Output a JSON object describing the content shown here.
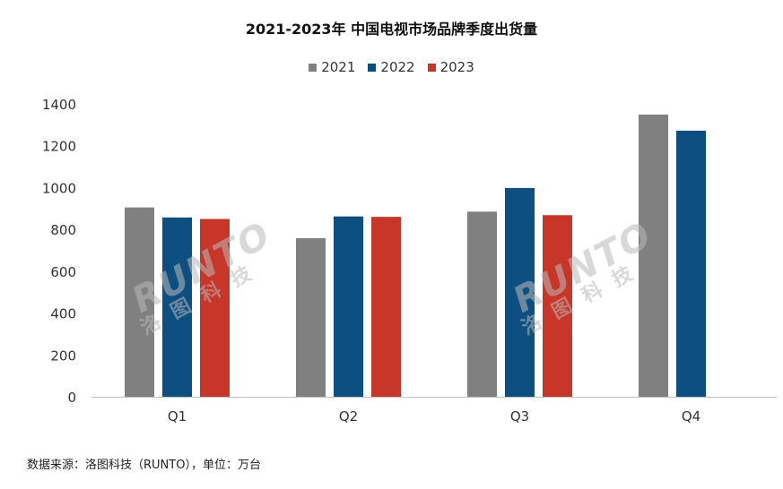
{
  "title": "2021-2023年 中国电视市场品牌季度出货量",
  "source_note": "数据来源：洛图科技（RUNTO），单位：万台",
  "watermark": {
    "latin": "RUNTO",
    "cjk": "洛图科技"
  },
  "chart_data": {
    "type": "bar",
    "title": "2021-2023年 中国电视市场品牌季度出货量",
    "categories": [
      "Q1",
      "Q2",
      "Q3",
      "Q4"
    ],
    "series": [
      {
        "name": "2021",
        "color": "#808080",
        "values": [
          905,
          758,
          885,
          1349
        ]
      },
      {
        "name": "2022",
        "color": "#0e4f82",
        "values": [
          857,
          862,
          998,
          1272
        ]
      },
      {
        "name": "2023",
        "color": "#c8362a",
        "values": [
          850,
          860,
          868,
          null
        ]
      }
    ],
    "ylim": [
      0,
      1400
    ],
    "yticks": [
      0,
      200,
      400,
      600,
      800,
      1000,
      1200,
      1400
    ],
    "grid": false,
    "legend_position": "top-center"
  }
}
